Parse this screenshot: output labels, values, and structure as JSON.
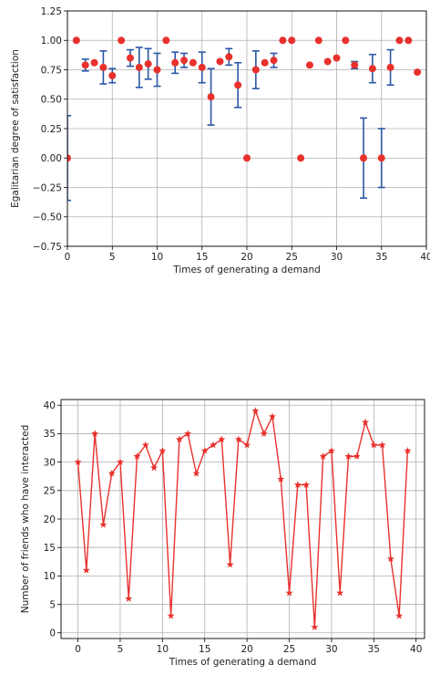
{
  "chart_data": [
    {
      "type": "scatter",
      "xlabel": "Times of generating a demand",
      "ylabel": "Egalitarian degree of satisfaction",
      "xlim": [
        0,
        40
      ],
      "ylim": [
        -0.75,
        1.25
      ],
      "xticks": [
        0,
        5,
        10,
        15,
        20,
        25,
        30,
        35,
        40
      ],
      "yticks": [
        -0.75,
        -0.5,
        -0.25,
        0.0,
        0.25,
        0.5,
        0.75,
        1.0,
        1.25
      ],
      "xtick_labels": [
        "0",
        "5",
        "10",
        "15",
        "20",
        "25",
        "30",
        "35",
        "40"
      ],
      "ytick_labels": [
        "−0.75",
        "−0.50",
        "−0.25",
        "0.00",
        "0.25",
        "0.50",
        "0.75",
        "1.00",
        "1.25"
      ],
      "grid": true,
      "marker_color": "#e8312d",
      "errorbar_color": "#2a56a6",
      "x": [
        0,
        1,
        2,
        3,
        4,
        5,
        6,
        7,
        8,
        9,
        10,
        11,
        12,
        13,
        14,
        15,
        16,
        17,
        18,
        19,
        20,
        21,
        22,
        23,
        24,
        25,
        26,
        27,
        28,
        29,
        30,
        31,
        32,
        33,
        34,
        35,
        36,
        37,
        38,
        39
      ],
      "y": [
        0.0,
        1.0,
        0.79,
        0.81,
        0.77,
        0.7,
        1.0,
        0.85,
        0.77,
        0.8,
        0.75,
        1.0,
        0.81,
        0.83,
        0.81,
        0.77,
        0.52,
        0.82,
        0.86,
        0.62,
        0.0,
        0.75,
        0.81,
        0.83,
        1.0,
        1.0,
        0.0,
        0.79,
        1.0,
        0.82,
        0.85,
        1.0,
        0.79,
        0.0,
        0.76,
        0.0,
        0.77,
        1.0,
        1.0,
        0.73
      ],
      "yerr": [
        0.36,
        0,
        0.05,
        0,
        0.14,
        0.06,
        0,
        0.07,
        0.17,
        0.13,
        0.14,
        0,
        0.09,
        0.06,
        0,
        0.13,
        0.24,
        0,
        0.07,
        0.19,
        0,
        0.16,
        0,
        0.06,
        0,
        0,
        0,
        0,
        0,
        0,
        0,
        0,
        0.03,
        0.34,
        0.12,
        0.25,
        0.15,
        0,
        0,
        0
      ]
    },
    {
      "type": "line",
      "xlabel": "Times of generating a demand",
      "ylabel": "Number of friends who have interacted",
      "xlim": [
        -2,
        41
      ],
      "ylim": [
        -1,
        41
      ],
      "xticks": [
        0,
        5,
        10,
        15,
        20,
        25,
        30,
        35,
        40
      ],
      "yticks": [
        0,
        5,
        10,
        15,
        20,
        25,
        30,
        35,
        40
      ],
      "xtick_labels": [
        "0",
        "5",
        "10",
        "15",
        "20",
        "25",
        "30",
        "35",
        "40"
      ],
      "ytick_labels": [
        "0",
        "5",
        "10",
        "15",
        "20",
        "25",
        "30",
        "35",
        "40"
      ],
      "grid": true,
      "line_color": "#e8312d",
      "marker": "star",
      "x": [
        0,
        1,
        2,
        3,
        4,
        5,
        6,
        7,
        8,
        9,
        10,
        11,
        12,
        13,
        14,
        15,
        16,
        17,
        18,
        19,
        20,
        21,
        22,
        23,
        24,
        25,
        26,
        27,
        28,
        29,
        30,
        31,
        32,
        33,
        34,
        35,
        36,
        37,
        38,
        39
      ],
      "y": [
        30,
        11,
        35,
        19,
        28,
        30,
        6,
        31,
        33,
        29,
        32,
        3,
        34,
        35,
        28,
        32,
        33,
        34,
        12,
        34,
        33,
        39,
        35,
        38,
        27,
        7,
        26,
        26,
        1,
        31,
        32,
        7,
        31,
        31,
        37,
        33,
        33,
        13,
        3,
        32
      ]
    }
  ]
}
